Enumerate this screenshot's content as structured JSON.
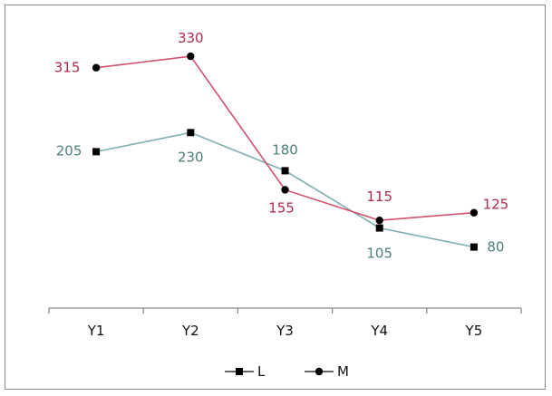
{
  "chart_data": {
    "type": "line",
    "categories": [
      "Y1",
      "Y2",
      "Y3",
      "Y4",
      "Y5"
    ],
    "series": [
      {
        "name": "L",
        "values": [
          205,
          230,
          180,
          105,
          80
        ],
        "color": "#2f6e6e",
        "line_color": "#7fb0b0",
        "label_color": "#4a7f7c",
        "marker": "square"
      },
      {
        "name": "M",
        "values": [
          315,
          330,
          155,
          115,
          125
        ],
        "color": "#b5284b",
        "line_color": "#d2506d",
        "label_color": "#b02a4b",
        "marker": "circle"
      }
    ],
    "ylim": [
      0,
      380
    ],
    "grid": false,
    "legend_position": "bottom"
  }
}
